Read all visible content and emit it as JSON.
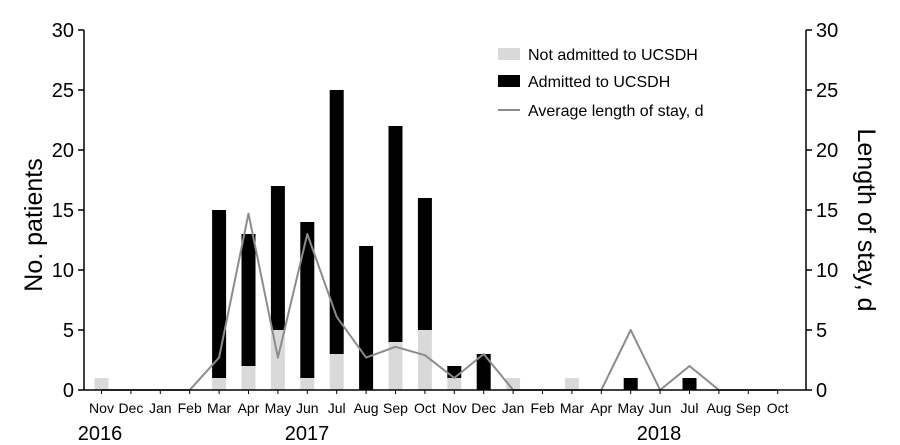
{
  "chart_data": {
    "type": "bar",
    "stacked": true,
    "categories": [
      "Nov",
      "Dec",
      "Jan",
      "Feb",
      "Mar",
      "Apr",
      "May",
      "Jun",
      "Jul",
      "Aug",
      "Sep",
      "Oct",
      "Nov",
      "Dec",
      "Jan",
      "Feb",
      "Mar",
      "Apr",
      "May",
      "Jun",
      "Jul",
      "Aug",
      "Sep",
      "Oct"
    ],
    "years": [
      "2016",
      "2017",
      "2018"
    ],
    "series": [
      {
        "name": "Not admitted to UCSDH",
        "kind": "bar",
        "color": "#d9d9d9",
        "values": [
          1,
          0,
          0,
          0,
          1,
          2,
          5,
          1,
          3,
          0,
          4,
          5,
          1,
          0,
          1,
          0,
          1,
          0,
          0,
          0,
          0,
          0,
          0,
          0
        ]
      },
      {
        "name": "Admitted to UCSDH",
        "kind": "bar",
        "color": "#000000",
        "values": [
          0,
          0,
          0,
          0,
          14,
          11,
          12,
          13,
          22,
          12,
          18,
          11,
          1,
          3,
          0,
          0,
          0,
          0,
          1,
          0,
          1,
          0,
          0,
          0
        ]
      },
      {
        "name": "Average length of stay, d",
        "kind": "line",
        "axis": "right",
        "color": "#8c8c8c",
        "values": [
          0,
          0,
          0,
          0,
          2.7,
          14.7,
          2.7,
          13,
          6.1,
          2.7,
          3.6,
          2.9,
          1,
          3,
          0,
          0,
          0,
          0,
          5,
          0,
          2,
          0,
          0,
          0
        ]
      }
    ],
    "ylabel": "No. patients",
    "y2label": "Length of stay, d",
    "ylim": [
      0,
      30
    ],
    "y2lim": [
      0,
      30
    ],
    "yticks": [
      0,
      5,
      10,
      15,
      20,
      25,
      30
    ],
    "grid": false,
    "legend_position": "top-right"
  }
}
